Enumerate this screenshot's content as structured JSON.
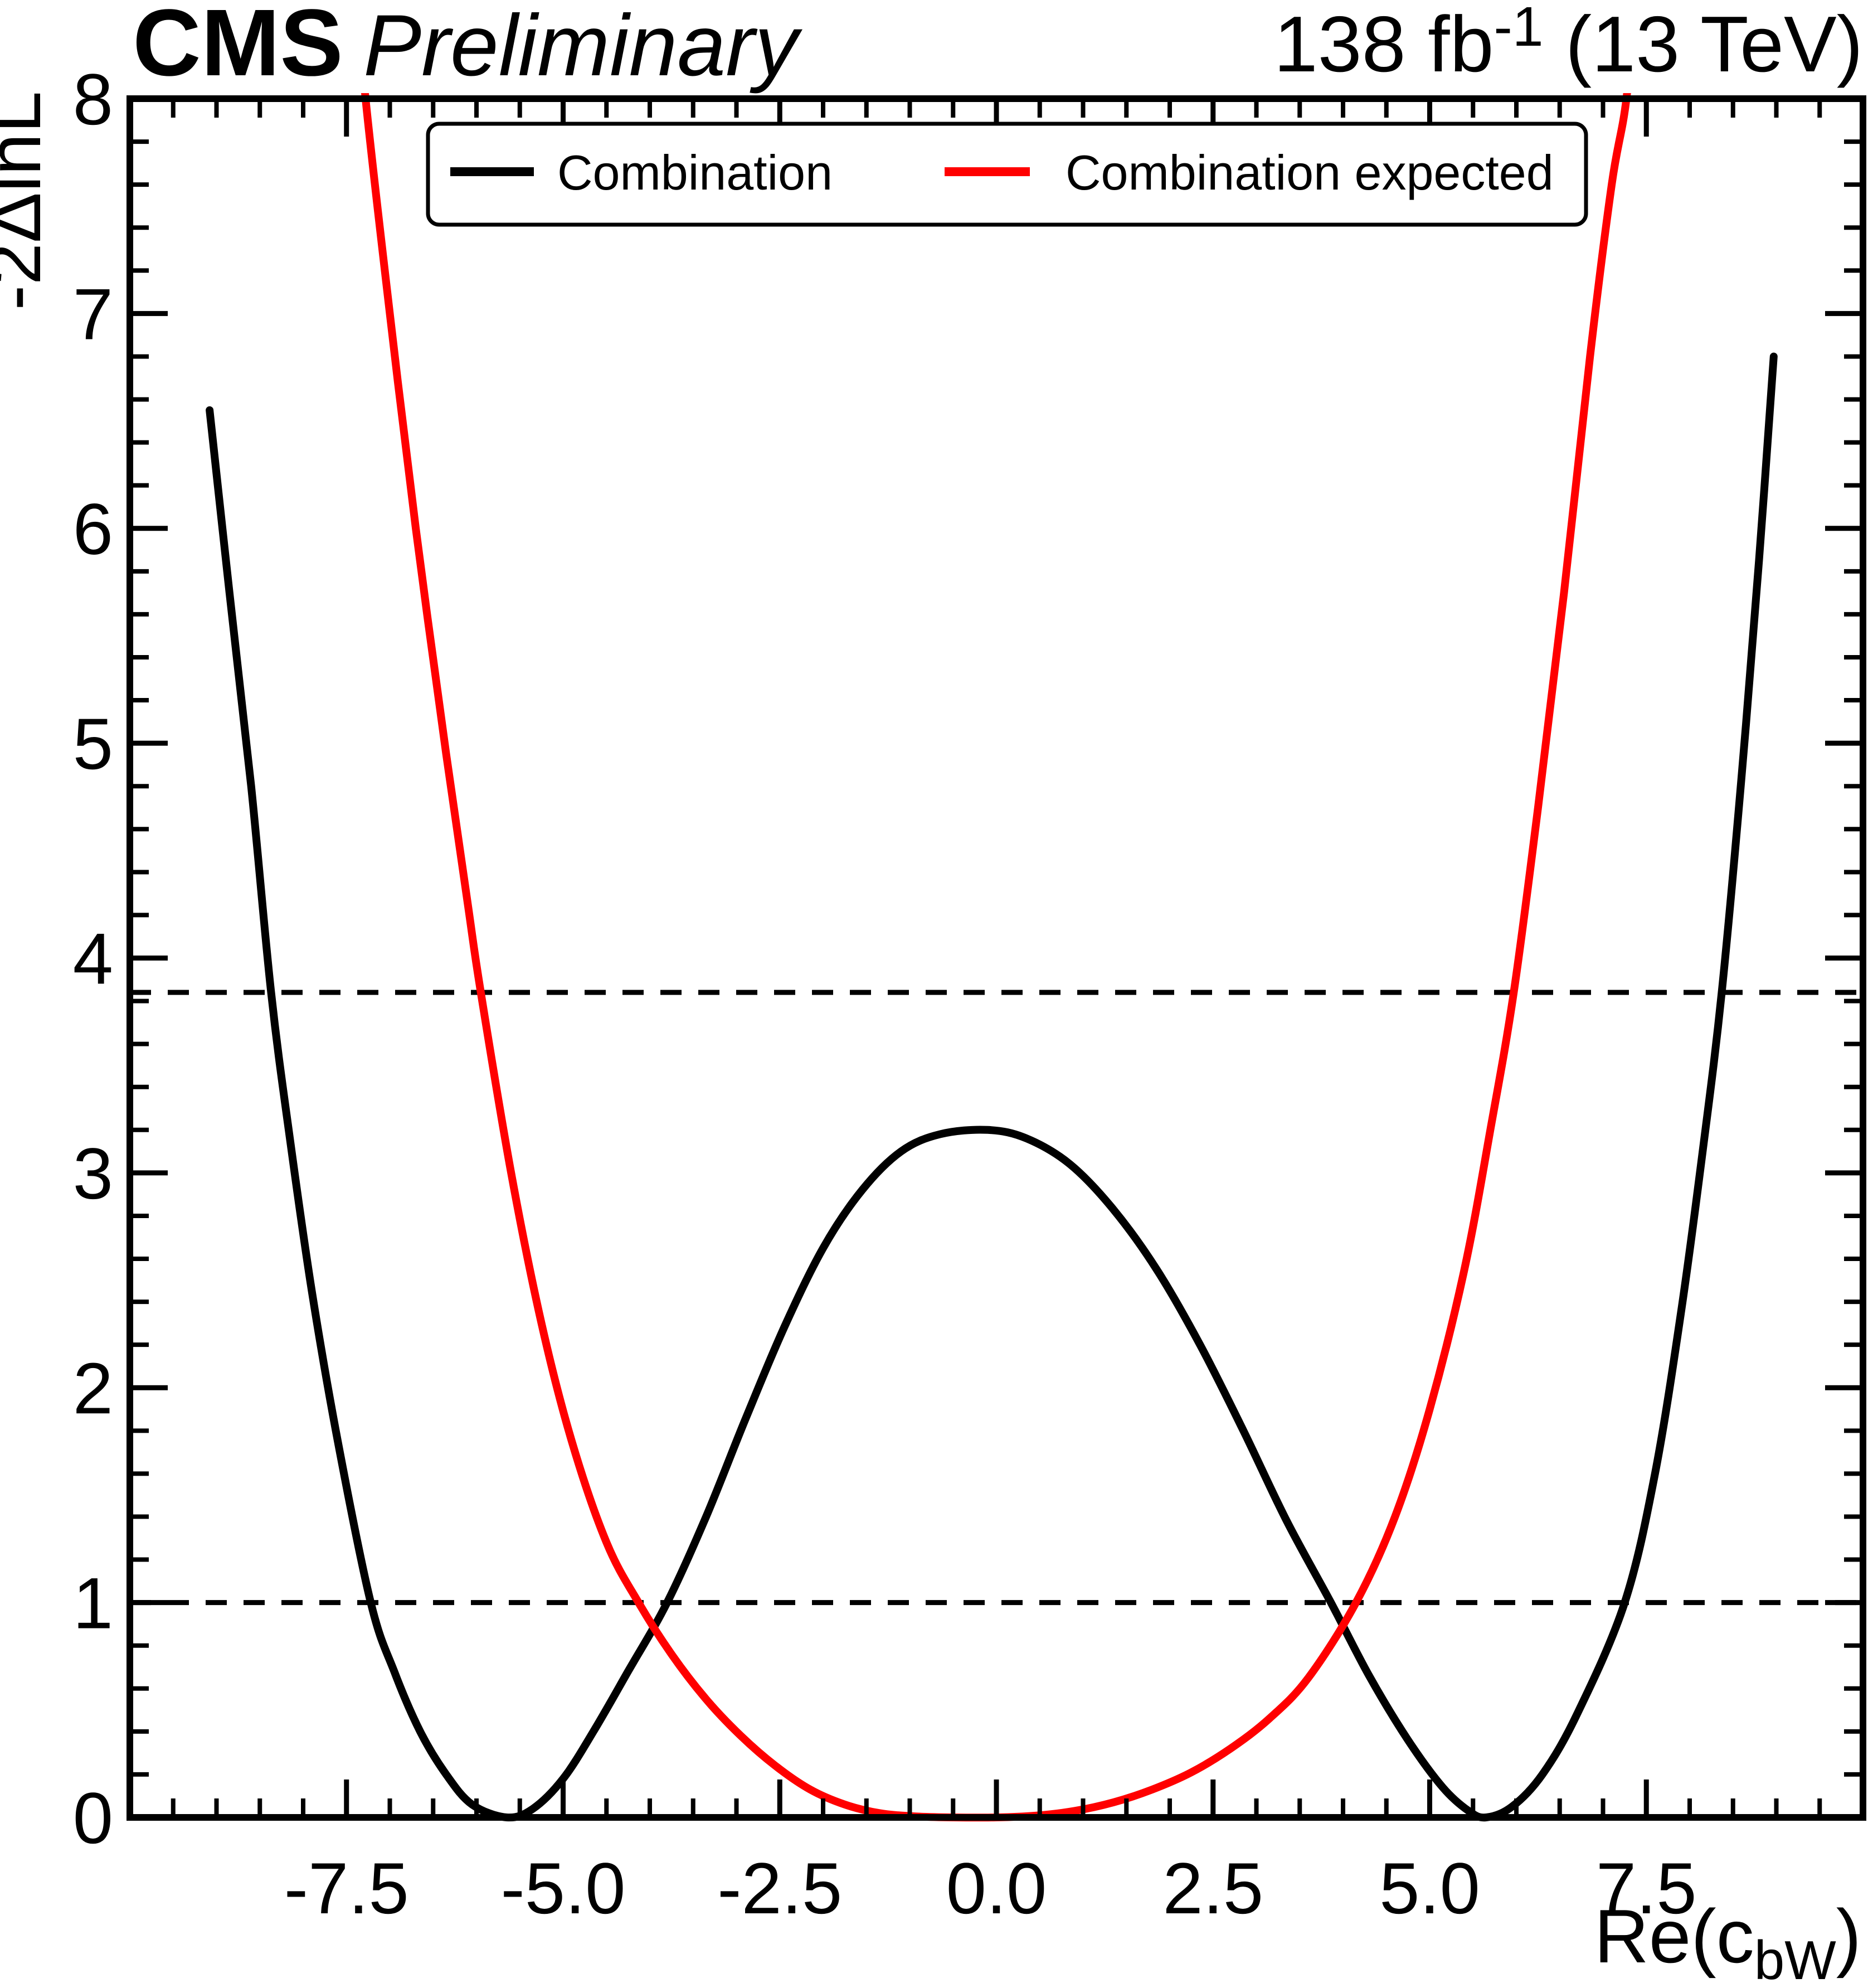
{
  "header": {
    "experiment": "CMS",
    "status": "Preliminary",
    "lumi_prefix": "138 fb",
    "lumi_sup": "-1",
    "lumi_suffix": " (13 TeV)"
  },
  "legend": {
    "entries": [
      {
        "label": "Combination",
        "color": "#000000"
      },
      {
        "label": "Combination expected",
        "color": "#ff0000"
      }
    ]
  },
  "chart_data": {
    "type": "line",
    "title": "",
    "ylabel": "-2ΔlnL",
    "xlabel_parts": {
      "pre": "Re(c",
      "sub": "bW",
      "post": ")"
    },
    "xlim": [
      -10,
      10
    ],
    "ylim": [
      0,
      8
    ],
    "grid": false,
    "legend_position": "top",
    "x_major_ticks": [
      {
        "v": -7.5,
        "label": "-7.5"
      },
      {
        "v": -5.0,
        "label": "-5.0"
      },
      {
        "v": -2.5,
        "label": "-2.5"
      },
      {
        "v": 0.0,
        "label": "0.0"
      },
      {
        "v": 2.5,
        "label": "2.5"
      },
      {
        "v": 5.0,
        "label": "5.0"
      },
      {
        "v": 7.5,
        "label": "7.5"
      }
    ],
    "x_minor_step": 0.5,
    "y_major_ticks": [
      {
        "v": 0,
        "label": "0"
      },
      {
        "v": 1,
        "label": "1"
      },
      {
        "v": 2,
        "label": "2"
      },
      {
        "v": 3,
        "label": "3"
      },
      {
        "v": 4,
        "label": "4"
      },
      {
        "v": 5,
        "label": "5"
      },
      {
        "v": 6,
        "label": "6"
      },
      {
        "v": 7,
        "label": "7"
      },
      {
        "v": 8,
        "label": "8"
      }
    ],
    "y_minor_step": 0.2,
    "reference_lines": [
      {
        "y": 1.0,
        "style": "dashed",
        "color": "#000000"
      },
      {
        "y": 3.84,
        "style": "dashed",
        "color": "#000000"
      }
    ],
    "series": [
      {
        "name": "Combination",
        "color": "#000000",
        "width": 14,
        "points": [
          [
            -9.08,
            6.55
          ],
          [
            -8.85,
            5.7
          ],
          [
            -8.6,
            4.8
          ],
          [
            -8.37,
            3.84
          ],
          [
            -8.15,
            3.15
          ],
          [
            -7.9,
            2.45
          ],
          [
            -7.6,
            1.75
          ],
          [
            -7.22,
            1.0
          ],
          [
            -6.95,
            0.68
          ],
          [
            -6.65,
            0.4
          ],
          [
            -6.35,
            0.2
          ],
          [
            -6.05,
            0.06
          ],
          [
            -5.65,
            0.0
          ],
          [
            -5.35,
            0.04
          ],
          [
            -5.0,
            0.18
          ],
          [
            -4.65,
            0.4
          ],
          [
            -4.25,
            0.68
          ],
          [
            -3.8,
            1.0
          ],
          [
            -3.35,
            1.4
          ],
          [
            -2.9,
            1.85
          ],
          [
            -2.45,
            2.28
          ],
          [
            -2.0,
            2.65
          ],
          [
            -1.55,
            2.92
          ],
          [
            -1.1,
            3.1
          ],
          [
            -0.65,
            3.18
          ],
          [
            -0.1,
            3.2
          ],
          [
            0.35,
            3.16
          ],
          [
            0.85,
            3.04
          ],
          [
            1.35,
            2.83
          ],
          [
            1.85,
            2.55
          ],
          [
            2.35,
            2.2
          ],
          [
            2.85,
            1.8
          ],
          [
            3.35,
            1.38
          ],
          [
            3.86,
            1.0
          ],
          [
            4.3,
            0.66
          ],
          [
            4.75,
            0.36
          ],
          [
            5.15,
            0.14
          ],
          [
            5.45,
            0.03
          ],
          [
            5.65,
            0.0
          ],
          [
            5.95,
            0.05
          ],
          [
            6.3,
            0.2
          ],
          [
            6.7,
            0.48
          ],
          [
            7.25,
            1.0
          ],
          [
            7.6,
            1.6
          ],
          [
            7.9,
            2.35
          ],
          [
            8.15,
            3.1
          ],
          [
            8.37,
            3.84
          ],
          [
            8.6,
            4.85
          ],
          [
            8.8,
            5.85
          ],
          [
            8.97,
            6.8
          ]
        ]
      },
      {
        "name": "Combination expected",
        "color": "#ff0000",
        "width": 14,
        "points": [
          [
            -7.4,
            8.6
          ],
          [
            -7.28,
            8.0
          ],
          [
            -7.0,
            7.0
          ],
          [
            -6.7,
            6.0
          ],
          [
            -6.35,
            4.95
          ],
          [
            -6.1,
            4.25
          ],
          [
            -5.95,
            3.84
          ],
          [
            -5.6,
            3.0
          ],
          [
            -5.25,
            2.3
          ],
          [
            -4.9,
            1.75
          ],
          [
            -4.5,
            1.28
          ],
          [
            -4.13,
            1.0
          ],
          [
            -3.75,
            0.76
          ],
          [
            -3.35,
            0.55
          ],
          [
            -2.95,
            0.38
          ],
          [
            -2.55,
            0.24
          ],
          [
            -2.15,
            0.13
          ],
          [
            -1.75,
            0.06
          ],
          [
            -1.35,
            0.02
          ],
          [
            -0.95,
            0.005
          ],
          [
            -0.5,
            0.0
          ],
          [
            0.0,
            0.0
          ],
          [
            0.45,
            0.008
          ],
          [
            0.9,
            0.03
          ],
          [
            1.35,
            0.07
          ],
          [
            1.8,
            0.13
          ],
          [
            2.25,
            0.21
          ],
          [
            2.7,
            0.32
          ],
          [
            3.15,
            0.46
          ],
          [
            3.6,
            0.65
          ],
          [
            4.15,
            1.0
          ],
          [
            4.6,
            1.4
          ],
          [
            5.0,
            1.9
          ],
          [
            5.4,
            2.55
          ],
          [
            5.7,
            3.2
          ],
          [
            5.97,
            3.84
          ],
          [
            6.25,
            4.7
          ],
          [
            6.55,
            5.7
          ],
          [
            6.85,
            6.8
          ],
          [
            7.1,
            7.6
          ],
          [
            7.27,
            8.0
          ],
          [
            7.4,
            8.6
          ]
        ]
      }
    ]
  }
}
